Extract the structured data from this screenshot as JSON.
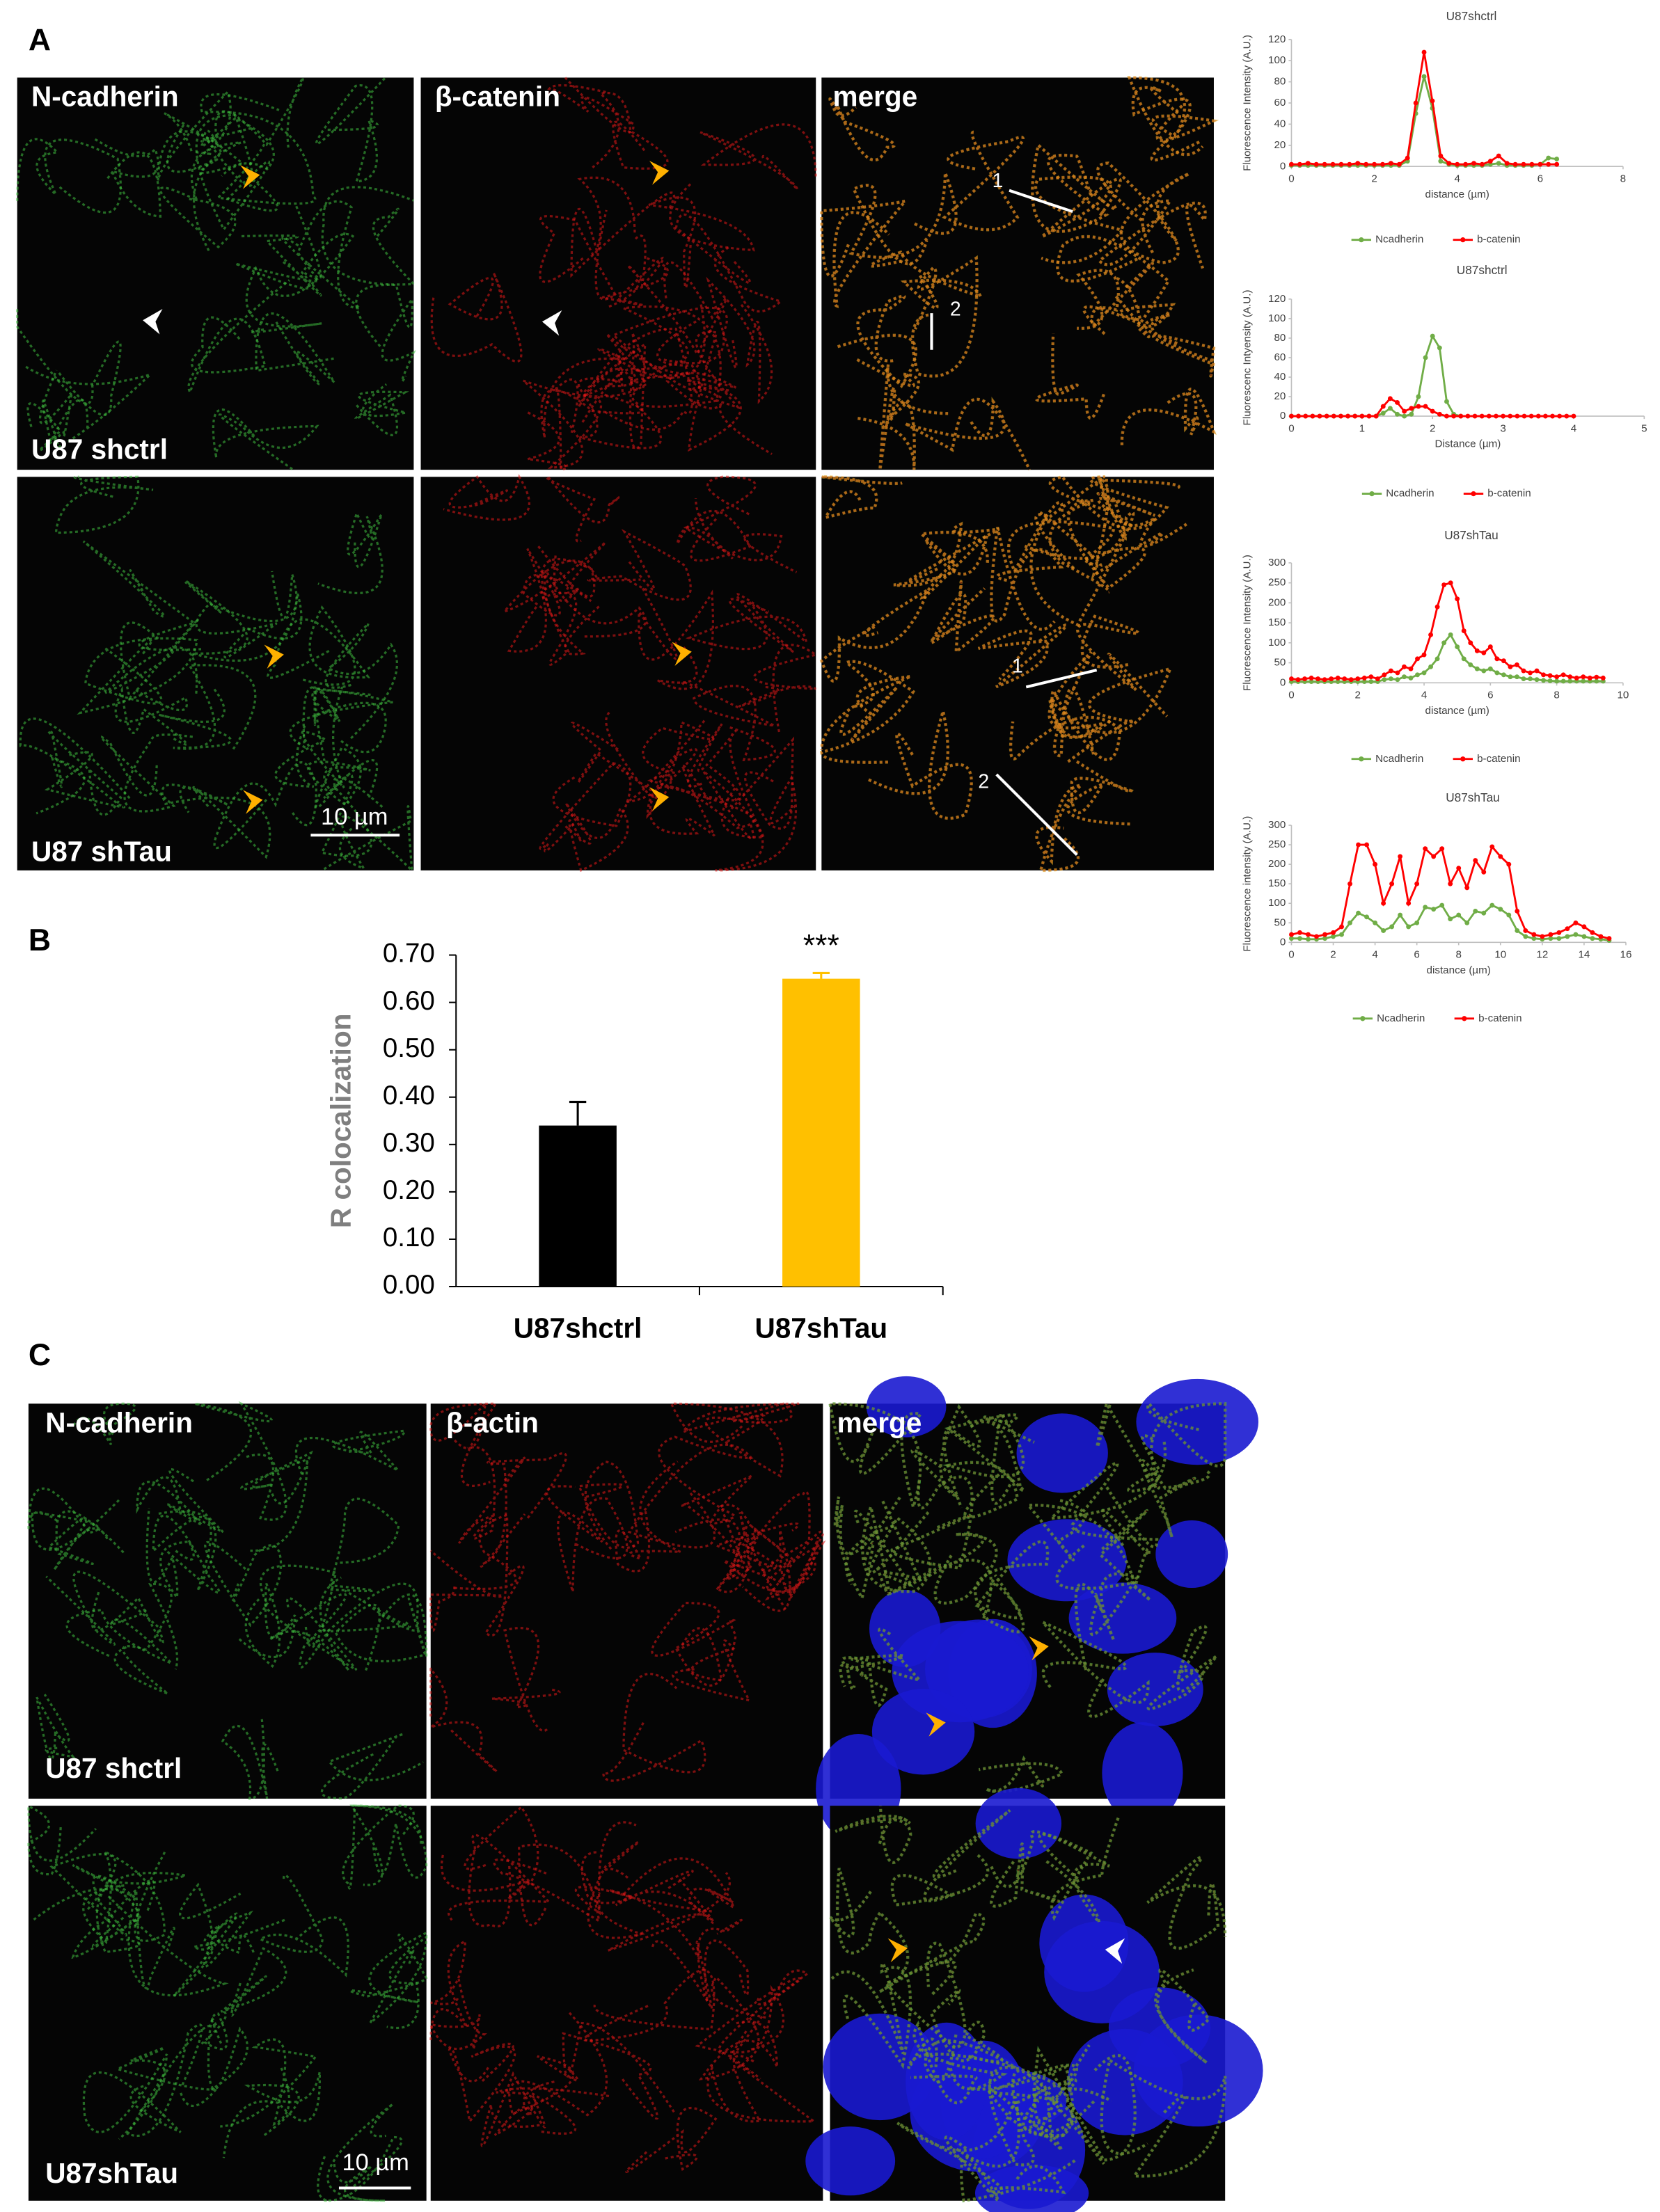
{
  "panel_a": {
    "label": "A",
    "columns": [
      "N-cadherin",
      "β-catenin",
      "merge"
    ],
    "rows": [
      "U87 shctrl",
      "U87 shTau"
    ],
    "scale_bar": "10 µm",
    "line_labels": [
      "1",
      "2",
      "1",
      "2"
    ]
  },
  "panel_b": {
    "label": "B"
  },
  "panel_c": {
    "label": "C",
    "columns": [
      "N-cadherin",
      "β-actin",
      "merge"
    ],
    "rows": [
      "U87 shctrl",
      "U87shTau"
    ],
    "scale_bar": "10 µm"
  },
  "chart_data": [
    {
      "type": "line",
      "title": "U87shctrl",
      "ylabel": "Fluorescence Intensity (A.U.)",
      "xlabel": "distance (µm)",
      "x": [
        0,
        0.2,
        0.4,
        0.6,
        0.8,
        1,
        1.2,
        1.4,
        1.6,
        1.8,
        2,
        2.2,
        2.4,
        2.6,
        2.8,
        3,
        3.2,
        3.4,
        3.6,
        3.8,
        4,
        4.2,
        4.4,
        4.6,
        4.8,
        5,
        5.2,
        5.4,
        5.6,
        5.8,
        6,
        6.2,
        6.4
      ],
      "series": [
        {
          "name": "Ncadherin",
          "color": "#70ad47",
          "values": [
            1,
            1,
            1,
            1,
            1,
            1,
            1,
            1,
            1,
            1,
            1,
            1,
            1,
            1,
            5,
            50,
            85,
            55,
            5,
            2,
            1,
            1,
            1,
            1,
            2,
            3,
            1,
            1,
            1,
            1,
            2,
            8,
            7
          ]
        },
        {
          "name": "b-catenin",
          "color": "#ff0000",
          "values": [
            2,
            2,
            3,
            2,
            2,
            2,
            2,
            2,
            3,
            2,
            2,
            2,
            3,
            2,
            8,
            60,
            108,
            62,
            10,
            3,
            2,
            2,
            3,
            2,
            5,
            10,
            3,
            2,
            2,
            2,
            2,
            2,
            2
          ]
        }
      ],
      "xlim": [
        0,
        8
      ],
      "xticks": [
        0,
        2,
        4,
        6,
        8
      ],
      "ylim": [
        0,
        120
      ],
      "yticks": [
        0,
        20,
        40,
        60,
        80,
        100,
        120
      ],
      "grid": false,
      "legend": "bottom"
    },
    {
      "type": "line",
      "title": "U87shctrl",
      "ylabel": "Fluorescenc Intyensity (A.U.)",
      "xlabel": "Distance (µm)",
      "x": [
        0,
        0.1,
        0.2,
        0.3,
        0.4,
        0.5,
        0.6,
        0.7,
        0.8,
        0.9,
        1,
        1.1,
        1.2,
        1.3,
        1.4,
        1.5,
        1.6,
        1.7,
        1.8,
        1.9,
        2,
        2.1,
        2.2,
        2.3,
        2.4,
        2.5,
        2.6,
        2.7,
        2.8,
        2.9,
        3,
        3.1,
        3.2,
        3.3,
        3.4,
        3.5,
        3.6,
        3.7,
        3.8,
        3.9,
        4
      ],
      "series": [
        {
          "name": "Ncadherin",
          "color": "#70ad47",
          "values": [
            0,
            0,
            0,
            0,
            0,
            0,
            0,
            0,
            0,
            0,
            0,
            0,
            0,
            3,
            8,
            2,
            0,
            2,
            20,
            60,
            82,
            70,
            15,
            2,
            0,
            null,
            null,
            null,
            null,
            null,
            null,
            null,
            null,
            null,
            null,
            null,
            null,
            null,
            null,
            null,
            null
          ]
        },
        {
          "name": "b-catenin",
          "color": "#ff0000",
          "values": [
            0,
            0,
            0,
            0,
            0,
            0,
            0,
            0,
            0,
            0,
            0,
            0,
            0,
            10,
            18,
            14,
            5,
            8,
            10,
            10,
            5,
            2,
            0,
            0,
            0,
            0,
            0,
            0,
            0,
            0,
            0,
            0,
            0,
            0,
            0,
            0,
            0,
            0,
            0,
            0,
            0
          ]
        }
      ],
      "xlim": [
        0,
        5
      ],
      "xticks": [
        0,
        1,
        2,
        3,
        4,
        5
      ],
      "ylim": [
        0,
        120
      ],
      "yticks": [
        0,
        20,
        40,
        60,
        80,
        100,
        120
      ],
      "grid": false,
      "legend": "bottom"
    },
    {
      "type": "line",
      "title": "U87shTau",
      "ylabel": "Fluorescence Intensity (A.U.)",
      "xlabel": "distance (µm)",
      "x": [
        0,
        0.2,
        0.4,
        0.6,
        0.8,
        1,
        1.2,
        1.4,
        1.6,
        1.8,
        2,
        2.2,
        2.4,
        2.6,
        2.8,
        3,
        3.2,
        3.4,
        3.6,
        3.8,
        4,
        4.2,
        4.4,
        4.6,
        4.8,
        5,
        5.2,
        5.4,
        5.6,
        5.8,
        6,
        6.2,
        6.4,
        6.6,
        6.8,
        7,
        7.2,
        7.4,
        7.6,
        7.8,
        8,
        8.2,
        8.4,
        8.6,
        8.8,
        9,
        9.2,
        9.4
      ],
      "series": [
        {
          "name": "Ncadherin",
          "color": "#70ad47",
          "values": [
            3,
            3,
            3,
            3,
            3,
            3,
            3,
            3,
            3,
            3,
            3,
            3,
            3,
            3,
            8,
            10,
            8,
            15,
            12,
            20,
            25,
            40,
            60,
            100,
            120,
            90,
            60,
            45,
            35,
            30,
            35,
            25,
            20,
            15,
            15,
            10,
            10,
            8,
            6,
            5,
            4,
            4,
            4,
            4,
            4,
            4,
            4,
            4
          ]
        },
        {
          "name": "b-catenin",
          "color": "#ff0000",
          "values": [
            10,
            8,
            10,
            12,
            10,
            8,
            10,
            12,
            10,
            8,
            10,
            12,
            15,
            10,
            20,
            30,
            25,
            40,
            35,
            60,
            70,
            120,
            190,
            245,
            250,
            210,
            130,
            100,
            80,
            75,
            90,
            60,
            55,
            40,
            45,
            30,
            25,
            30,
            20,
            18,
            15,
            20,
            15,
            12,
            15,
            12,
            14,
            12
          ]
        }
      ],
      "xlim": [
        0,
        10
      ],
      "xticks": [
        0,
        2,
        4,
        6,
        8,
        10
      ],
      "ylim": [
        0,
        300
      ],
      "yticks": [
        0,
        50,
        100,
        150,
        200,
        250,
        300
      ],
      "grid": false,
      "legend": "bottom"
    },
    {
      "type": "line",
      "title": "U87shTau",
      "ylabel": "Fluorescence intensity (A.U.)",
      "xlabel": "distance (µm)",
      "x": [
        0,
        0.4,
        0.8,
        1.2,
        1.6,
        2,
        2.4,
        2.8,
        3.2,
        3.6,
        4,
        4.4,
        4.8,
        5.2,
        5.6,
        6,
        6.4,
        6.8,
        7.2,
        7.6,
        8,
        8.4,
        8.8,
        9.2,
        9.6,
        10,
        10.4,
        10.8,
        11.2,
        11.6,
        12,
        12.4,
        12.8,
        13.2,
        13.6,
        14,
        14.4,
        14.8,
        15.2
      ],
      "series": [
        {
          "name": "Ncadherin",
          "color": "#70ad47",
          "values": [
            10,
            10,
            8,
            8,
            10,
            15,
            20,
            50,
            75,
            65,
            50,
            30,
            40,
            70,
            40,
            50,
            90,
            85,
            95,
            60,
            70,
            50,
            80,
            75,
            95,
            85,
            70,
            30,
            15,
            10,
            8,
            10,
            10,
            15,
            20,
            15,
            10,
            8,
            5
          ]
        },
        {
          "name": "b-catenin",
          "color": "#ff0000",
          "values": [
            20,
            25,
            20,
            15,
            20,
            25,
            40,
            150,
            250,
            250,
            200,
            100,
            150,
            220,
            100,
            150,
            240,
            220,
            240,
            150,
            190,
            140,
            210,
            180,
            245,
            220,
            200,
            80,
            30,
            20,
            15,
            20,
            25,
            35,
            50,
            40,
            25,
            15,
            10
          ]
        }
      ],
      "xlim": [
        0,
        16
      ],
      "xticks": [
        0,
        2,
        4,
        6,
        8,
        10,
        12,
        14,
        16
      ],
      "ylim": [
        0,
        300
      ],
      "yticks": [
        0,
        50,
        100,
        150,
        200,
        250,
        300
      ],
      "grid": false,
      "legend": "bottom"
    },
    {
      "type": "bar",
      "ylabel": "R colocalization",
      "categories": [
        "U87shctrl",
        "U87shTau"
      ],
      "values": [
        0.34,
        0.65
      ],
      "errors": [
        0.05,
        0.012
      ],
      "colors": [
        "#000000",
        "#ffc000"
      ],
      "annotation": "***",
      "ylim": [
        0,
        0.7
      ],
      "yticks": [
        {
          "value": 0,
          "label": "0.00"
        },
        {
          "value": 0.1,
          "label": "0.10"
        },
        {
          "value": 0.2,
          "label": "0.20"
        },
        {
          "value": 0.3,
          "label": "0.30"
        },
        {
          "value": 0.4,
          "label": "0.40"
        },
        {
          "value": 0.5,
          "label": "0.50"
        },
        {
          "value": 0.6,
          "label": "0.60"
        },
        {
          "value": 0.7,
          "label": "0.70"
        }
      ],
      "grid": false
    }
  ]
}
